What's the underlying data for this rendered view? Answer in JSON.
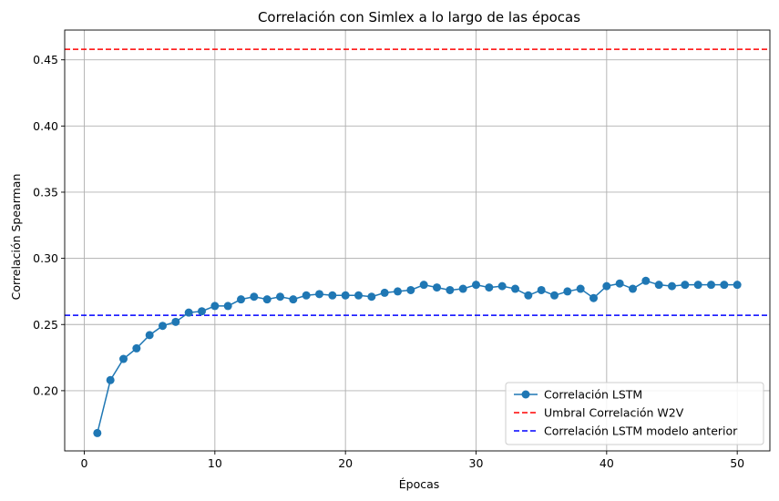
{
  "chart_data": {
    "type": "line",
    "title": "Correlación con Simlex a lo largo de las épocas",
    "xlabel": "Épocas",
    "ylabel": "Correlación Spearman",
    "xlim": [
      -1.5,
      52.5
    ],
    "ylim": [
      0.1545,
      0.4725
    ],
    "xticks": [
      0,
      10,
      20,
      30,
      40,
      50
    ],
    "yticks": [
      0.2,
      0.25,
      0.3,
      0.35,
      0.4,
      0.45
    ],
    "xtick_labels": [
      "0",
      "10",
      "20",
      "30",
      "40",
      "50"
    ],
    "ytick_labels": [
      "0.20",
      "0.25",
      "0.30",
      "0.35",
      "0.40",
      "0.45"
    ],
    "grid": true,
    "legend_position": "lower-right",
    "series": [
      {
        "name": "Correlación LSTM",
        "color": "#1f77b4",
        "style": "solid",
        "marker": "circle",
        "x": [
          1,
          2,
          3,
          4,
          5,
          6,
          7,
          8,
          9,
          10,
          11,
          12,
          13,
          14,
          15,
          16,
          17,
          18,
          19,
          20,
          21,
          22,
          23,
          24,
          25,
          26,
          27,
          28,
          29,
          30,
          31,
          32,
          33,
          34,
          35,
          36,
          37,
          38,
          39,
          40,
          41,
          42,
          43,
          44,
          45,
          46,
          47,
          48,
          49,
          50
        ],
        "y": [
          0.168,
          0.208,
          0.224,
          0.232,
          0.242,
          0.249,
          0.252,
          0.259,
          0.26,
          0.264,
          0.264,
          0.269,
          0.271,
          0.269,
          0.271,
          0.269,
          0.272,
          0.273,
          0.272,
          0.272,
          0.272,
          0.271,
          0.274,
          0.275,
          0.276,
          0.28,
          0.278,
          0.276,
          0.277,
          0.28,
          0.278,
          0.279,
          0.277,
          0.272,
          0.276,
          0.272,
          0.275,
          0.277,
          0.27,
          0.279,
          0.281,
          0.277,
          0.283,
          0.28,
          0.279,
          0.28,
          0.28,
          0.28,
          0.28,
          0.28
        ]
      }
    ],
    "reference_lines": [
      {
        "name": "Umbral Correlación W2V",
        "y": 0.458,
        "color": "#ff0000",
        "style": "dashed"
      },
      {
        "name": "Correlación LSTM modelo anterior",
        "y": 0.257,
        "color": "#0000ff",
        "style": "dashed"
      }
    ]
  }
}
